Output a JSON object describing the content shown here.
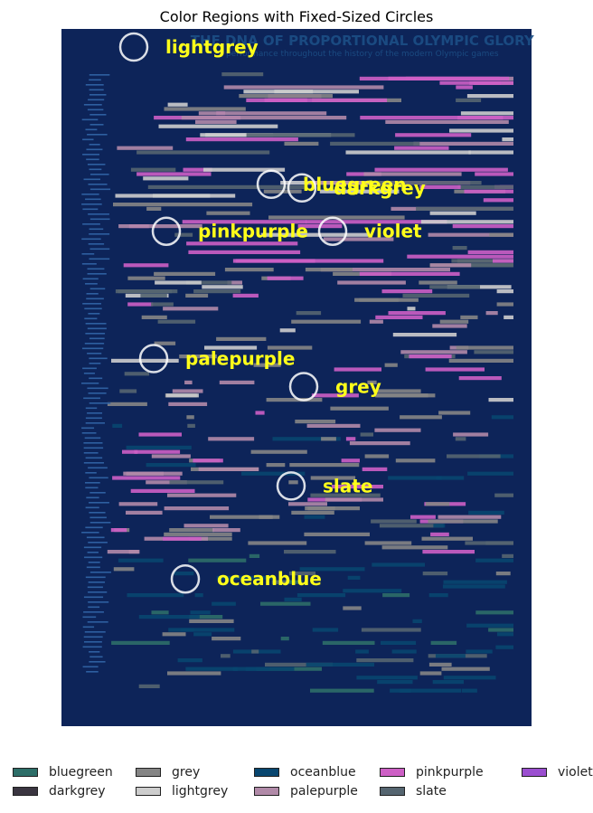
{
  "chart_data": {
    "type": "scatter",
    "title": "Color Regions with Fixed-Sized Circles",
    "background_image": {
      "title_text": "THE DNA OF PROPORTIONAL OLYMPIC GLORY",
      "subtitle_text": "performance throughout the history of the modern Olympic games",
      "background_color": "#0d2459"
    },
    "x_range": [
      0,
      520
    ],
    "y_range": [
      0,
      772
    ],
    "circles": [
      {
        "label": "lightgrey",
        "x": 80,
        "y": 20
      },
      {
        "label": "bluegreen",
        "x": 232,
        "y": 172
      },
      {
        "label": "darkgrey",
        "x": 266,
        "y": 176
      },
      {
        "label": "pinkpurple",
        "x": 116,
        "y": 224
      },
      {
        "label": "violet",
        "x": 300,
        "y": 224
      },
      {
        "label": "palepurple",
        "x": 102,
        "y": 365
      },
      {
        "label": "grey",
        "x": 268,
        "y": 396
      },
      {
        "label": "slate",
        "x": 254,
        "y": 506
      },
      {
        "label": "oceanblue",
        "x": 137,
        "y": 609
      }
    ],
    "legend": {
      "placement": "bottom",
      "entries": [
        {
          "label": "bluegreen",
          "color": "#2d6e68"
        },
        {
          "label": "darkgrey",
          "color": "#3a3540"
        },
        {
          "label": "grey",
          "color": "#858585"
        },
        {
          "label": "lightgrey",
          "color": "#cdcdcd"
        },
        {
          "label": "oceanblue",
          "color": "#08466f"
        },
        {
          "label": "palepurple",
          "color": "#b18aa8"
        },
        {
          "label": "pinkpurple",
          "color": "#cd5fc5"
        },
        {
          "label": "slate",
          "color": "#556570"
        },
        {
          "label": "violet",
          "color": "#9b4fd0"
        }
      ]
    }
  }
}
